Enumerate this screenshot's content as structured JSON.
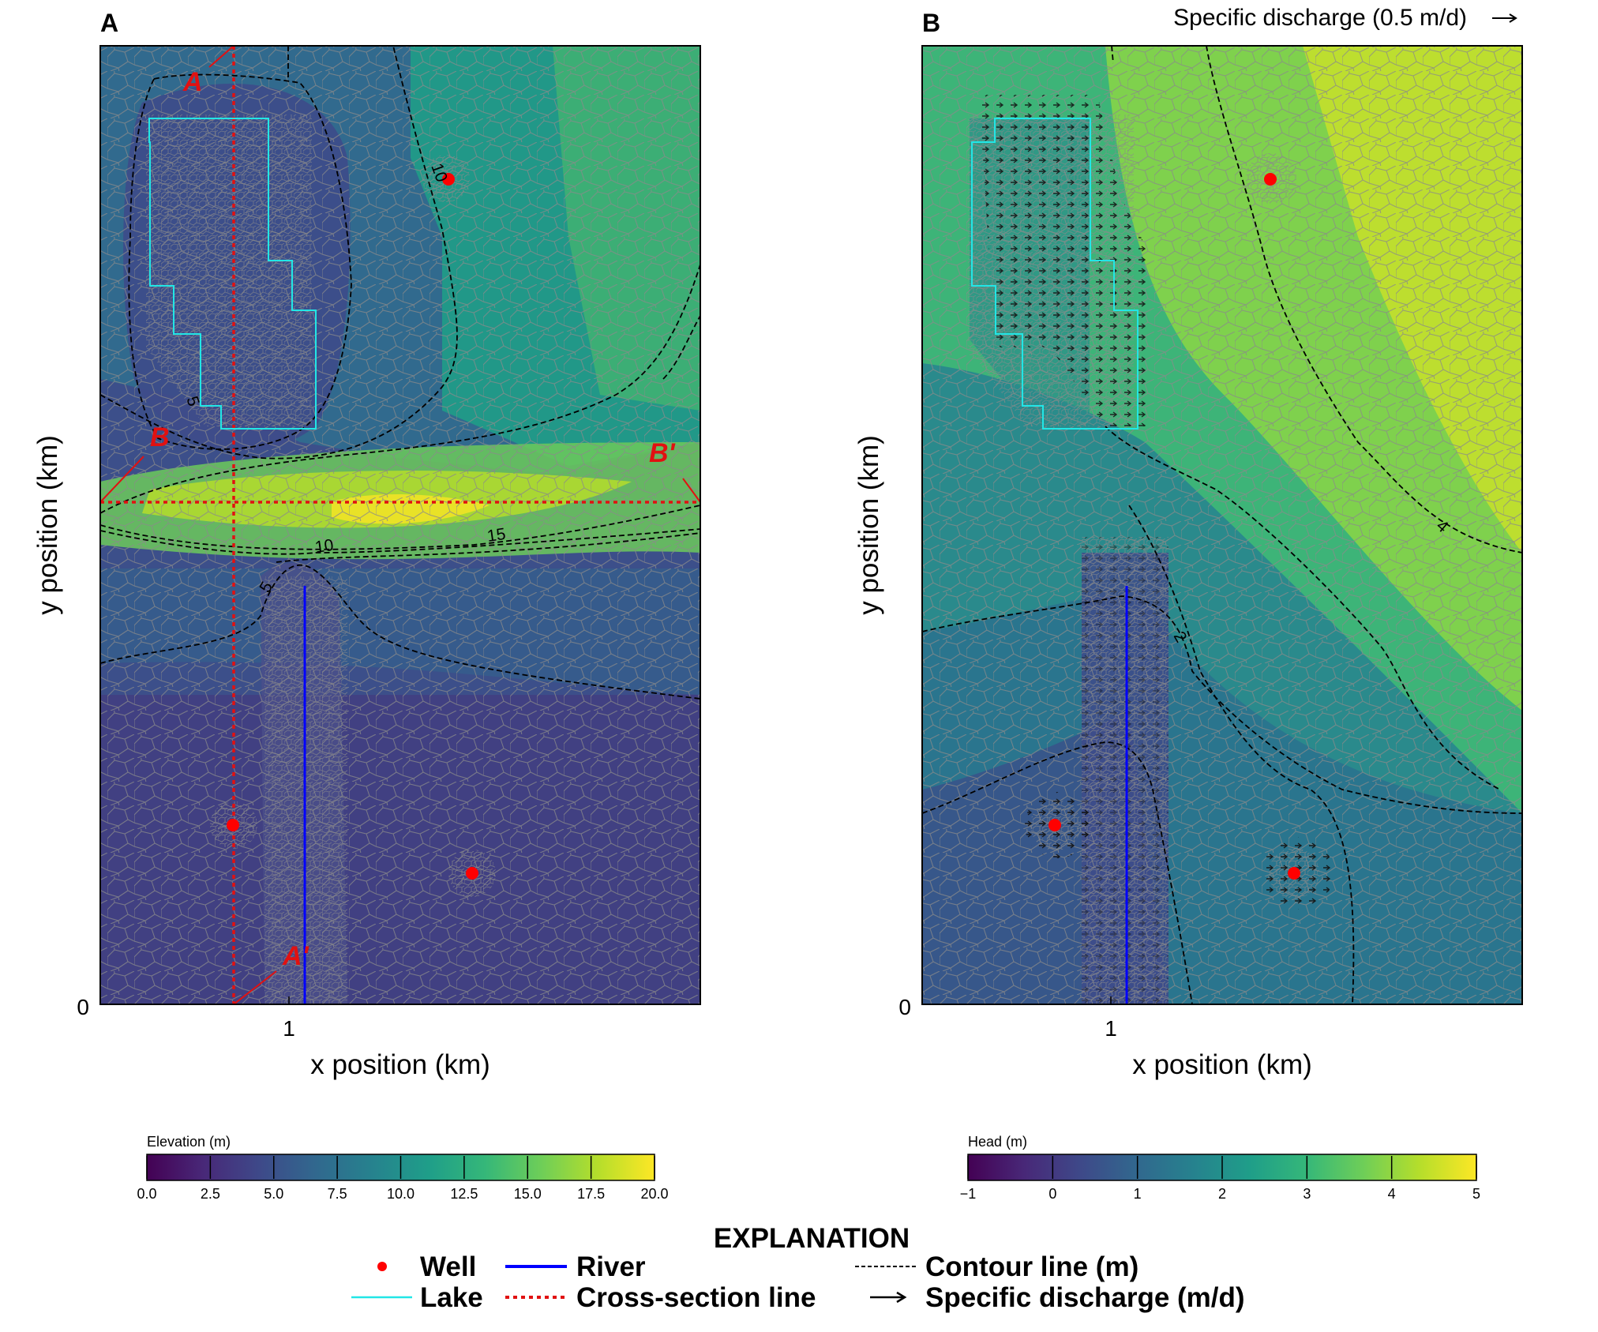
{
  "colors": {
    "well": "#ff0000",
    "river": "#0000ff",
    "lake": "#22e6e6",
    "cross_section": "#e11111",
    "contour": "#000000",
    "mesh": "#8a8a8a",
    "viridis": [
      "#440154",
      "#482878",
      "#3e4989",
      "#31688e",
      "#26828e",
      "#1f9e89",
      "#35b779",
      "#6ece58",
      "#b5de2b",
      "#fde725"
    ]
  },
  "chart_data": [
    {
      "type": "heatmap",
      "panel_label": "A",
      "title": "",
      "xlabel": "x position (km)",
      "ylabel": "y position (km)",
      "x_ticks": [
        {
          "value": 1,
          "label": "1"
        }
      ],
      "y_ticks": [
        {
          "value": 0,
          "label": "0"
        }
      ],
      "xlim": [
        0,
        3.2
      ],
      "ylim": [
        0,
        5.1
      ],
      "colorbar": {
        "label": "Elevation (m)",
        "range": [
          0,
          20
        ],
        "ticks": [
          {
            "value": 0,
            "label": "0.0"
          },
          {
            "value": 2.5,
            "label": "2.5"
          },
          {
            "value": 5,
            "label": "5.0"
          },
          {
            "value": 7.5,
            "label": "7.5"
          },
          {
            "value": 10,
            "label": "10.0"
          },
          {
            "value": 12.5,
            "label": "12.5"
          },
          {
            "value": 15,
            "label": "15.0"
          },
          {
            "value": 17.5,
            "label": "17.5"
          },
          {
            "value": 20,
            "label": "20.0"
          }
        ]
      },
      "contour_labels": [
        {
          "text": "10",
          "value": 10,
          "x": 1.78,
          "y": 4.46,
          "angle": 70
        },
        {
          "text": "5",
          "value": 5,
          "x": 0.5,
          "y": 3.19,
          "angle": 70
        },
        {
          "text": "15",
          "value": 15,
          "x": 2.1,
          "y": 2.48,
          "angle": -8
        },
        {
          "text": "10",
          "value": 10,
          "x": 1.19,
          "y": 2.4,
          "angle": -8
        },
        {
          "text": "5",
          "value": 5,
          "x": 0.93,
          "y": 2.23,
          "angle": -60
        }
      ],
      "cross_sections": [
        {
          "start_label": "A",
          "end_label": "A'",
          "start": [
            0.72,
            5.15
          ],
          "end": [
            0.72,
            0
          ],
          "start_label_at": [
            0.5,
            4.9
          ],
          "end_label_at": [
            1.06,
            0.23
          ]
        },
        {
          "start_label": "B",
          "end_label": "B'",
          "start": [
            0,
            2.69
          ],
          "end": [
            3.2,
            2.69
          ],
          "start_label_at": [
            0.28,
            3.02
          ],
          "end_label_at": [
            3.02,
            2.94
          ]
        }
      ],
      "wells": [
        [
          1.86,
          4.4
        ],
        [
          0.71,
          0.95
        ],
        [
          1.98,
          0.7
        ]
      ],
      "river": {
        "x": 1.08,
        "y": [
          0,
          2.24
        ]
      },
      "lake": {
        "outline": [
          [
            0.39,
            4.7
          ],
          [
            0.9,
            4.7
          ],
          [
            0.9,
            4.04
          ],
          [
            1.02,
            4.04
          ],
          [
            1.02,
            3.7
          ],
          [
            1.15,
            3.7
          ],
          [
            1.15,
            3.04
          ],
          [
            0.66,
            3.04
          ],
          [
            0.66,
            3.16
          ],
          [
            0.51,
            3.16
          ],
          [
            0.51,
            3.56
          ],
          [
            0.37,
            3.56
          ],
          [
            0.37,
            3.8
          ],
          [
            0.26,
            3.8
          ],
          [
            0.26,
            4.56
          ],
          [
            0.39,
            4.56
          ]
        ]
      }
    },
    {
      "type": "heatmap",
      "panel_label": "B",
      "title": "",
      "xlabel": "x position (km)",
      "ylabel": "y position (km)",
      "x_ticks": [
        {
          "value": 1,
          "label": "1"
        }
      ],
      "y_ticks": [
        {
          "value": 0,
          "label": "0"
        }
      ],
      "xlim": [
        0,
        3.2
      ],
      "ylim": [
        0,
        5.1
      ],
      "quiver_key": {
        "label": "Specific discharge (0.5 m/d)",
        "value": 0.5
      },
      "colorbar": {
        "label": "Head (m)",
        "range": [
          -1,
          5
        ],
        "ticks": [
          {
            "value": -1,
            "label": "−1"
          },
          {
            "value": 0,
            "label": "0"
          },
          {
            "value": 1,
            "label": "1"
          },
          {
            "value": 2,
            "label": "2"
          },
          {
            "value": 3,
            "label": "3"
          },
          {
            "value": 4,
            "label": "4"
          },
          {
            "value": 5,
            "label": "5"
          }
        ]
      },
      "contour_labels": [
        {
          "text": "4",
          "value": 4,
          "x": 2.76,
          "y": 2.53,
          "angle": 40
        },
        {
          "text": "2",
          "value": 2,
          "x": 1.39,
          "y": 1.96,
          "angle": 60
        }
      ],
      "wells": [
        [
          1.86,
          4.4
        ],
        [
          0.71,
          0.95
        ],
        [
          1.98,
          0.7
        ]
      ],
      "river": {
        "x": 1.08,
        "y": [
          0,
          2.24
        ]
      },
      "lake": {
        "outline": [
          [
            0.39,
            4.7
          ],
          [
            0.9,
            4.7
          ],
          [
            0.9,
            4.04
          ],
          [
            1.02,
            4.04
          ],
          [
            1.02,
            3.7
          ],
          [
            1.15,
            3.7
          ],
          [
            1.15,
            3.04
          ],
          [
            0.66,
            3.04
          ],
          [
            0.66,
            3.16
          ],
          [
            0.51,
            3.16
          ],
          [
            0.51,
            3.56
          ],
          [
            0.37,
            3.56
          ],
          [
            0.37,
            3.8
          ],
          [
            0.26,
            3.8
          ],
          [
            0.26,
            4.56
          ],
          [
            0.39,
            4.56
          ]
        ]
      }
    }
  ],
  "legend": {
    "title": "EXPLANATION",
    "items": [
      {
        "key": "well",
        "label": "Well"
      },
      {
        "key": "river",
        "label": "River"
      },
      {
        "key": "contour",
        "label": "Contour line (m)"
      },
      {
        "key": "lake",
        "label": "Lake"
      },
      {
        "key": "cross_section",
        "label": "Cross-section line"
      },
      {
        "key": "discharge",
        "label": "Specific discharge (m/d)"
      }
    ]
  }
}
